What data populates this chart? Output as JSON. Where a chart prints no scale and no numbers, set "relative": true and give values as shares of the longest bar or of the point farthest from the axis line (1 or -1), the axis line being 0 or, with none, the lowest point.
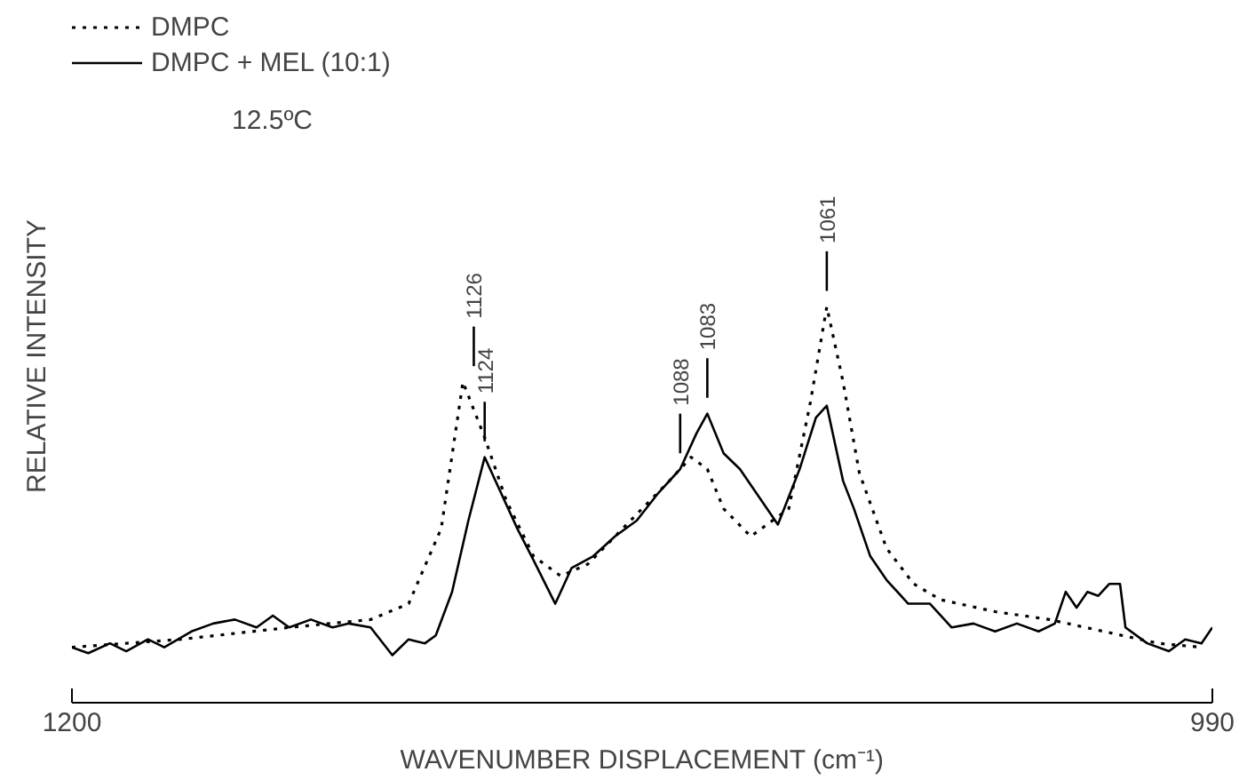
{
  "chart_data": {
    "type": "line",
    "relative": true,
    "xlabel": "WAVENUMBER DISPLACEMENT (cm⁻¹)",
    "ylabel": "RELATIVE INTENSITY",
    "xlim": [
      1200,
      990
    ],
    "xticks": [
      1200,
      990
    ],
    "grid": false,
    "legend": "top left",
    "marker": "none",
    "series": [
      {
        "name": "DMPC",
        "color": "#000000",
        "line_style": "dotted",
        "x": [
          1200,
          1180,
          1160,
          1145,
          1138,
          1132,
          1128,
          1124,
          1120,
          1115,
          1110,
          1105,
          1100,
          1095,
          1090,
          1086,
          1083,
          1080,
          1075,
          1068,
          1064,
          1061,
          1058,
          1055,
          1050,
          1045,
          1040,
          1030,
          1020,
          1010,
          1000,
          992
        ],
        "values": [
          0.14,
          0.16,
          0.19,
          0.21,
          0.25,
          0.44,
          0.81,
          0.67,
          0.51,
          0.37,
          0.32,
          0.35,
          0.42,
          0.49,
          0.56,
          0.62,
          0.59,
          0.49,
          0.42,
          0.49,
          0.76,
          1.0,
          0.81,
          0.58,
          0.39,
          0.3,
          0.26,
          0.23,
          0.21,
          0.18,
          0.15,
          0.14
        ]
      },
      {
        "name": "DMPC + MEL (10:1)",
        "color": "#000000",
        "line_style": "solid",
        "x": [
          1200,
          1197,
          1193,
          1190,
          1186,
          1183,
          1178,
          1174,
          1170,
          1166,
          1163,
          1160,
          1156,
          1152,
          1149,
          1145,
          1141,
          1138,
          1135,
          1133,
          1130,
          1127,
          1124,
          1121,
          1118,
          1115,
          1111,
          1108,
          1104,
          1100,
          1096,
          1092,
          1088,
          1085,
          1083,
          1080,
          1077,
          1074,
          1070,
          1066,
          1063,
          1061,
          1058,
          1056,
          1053,
          1050,
          1046,
          1042,
          1038,
          1034,
          1030,
          1026,
          1022,
          1019,
          1017,
          1015,
          1013,
          1011,
          1009,
          1007,
          1006,
          1002,
          998,
          995,
          992,
          990
        ],
        "values": [
          0.14,
          0.125,
          0.15,
          0.13,
          0.16,
          0.14,
          0.18,
          0.2,
          0.21,
          0.19,
          0.22,
          0.19,
          0.21,
          0.19,
          0.2,
          0.19,
          0.12,
          0.16,
          0.15,
          0.17,
          0.28,
          0.46,
          0.62,
          0.53,
          0.44,
          0.36,
          0.25,
          0.34,
          0.37,
          0.42,
          0.46,
          0.53,
          0.59,
          0.68,
          0.73,
          0.63,
          0.59,
          0.53,
          0.45,
          0.59,
          0.72,
          0.75,
          0.56,
          0.49,
          0.37,
          0.31,
          0.25,
          0.25,
          0.19,
          0.2,
          0.18,
          0.2,
          0.18,
          0.2,
          0.28,
          0.24,
          0.28,
          0.27,
          0.3,
          0.3,
          0.19,
          0.15,
          0.13,
          0.16,
          0.15,
          0.19
        ]
      }
    ],
    "annotations": [
      "12.5ºC",
      {
        "text": "1126",
        "x": 1126,
        "y": 0.81
      },
      {
        "text": "1124",
        "x": 1124,
        "y": 0.62
      },
      {
        "text": "1088",
        "x": 1088,
        "y": 0.59
      },
      {
        "text": "1083",
        "x": 1083,
        "y": 0.73
      },
      {
        "text": "1061",
        "x": 1061,
        "y": 1.0
      }
    ]
  }
}
